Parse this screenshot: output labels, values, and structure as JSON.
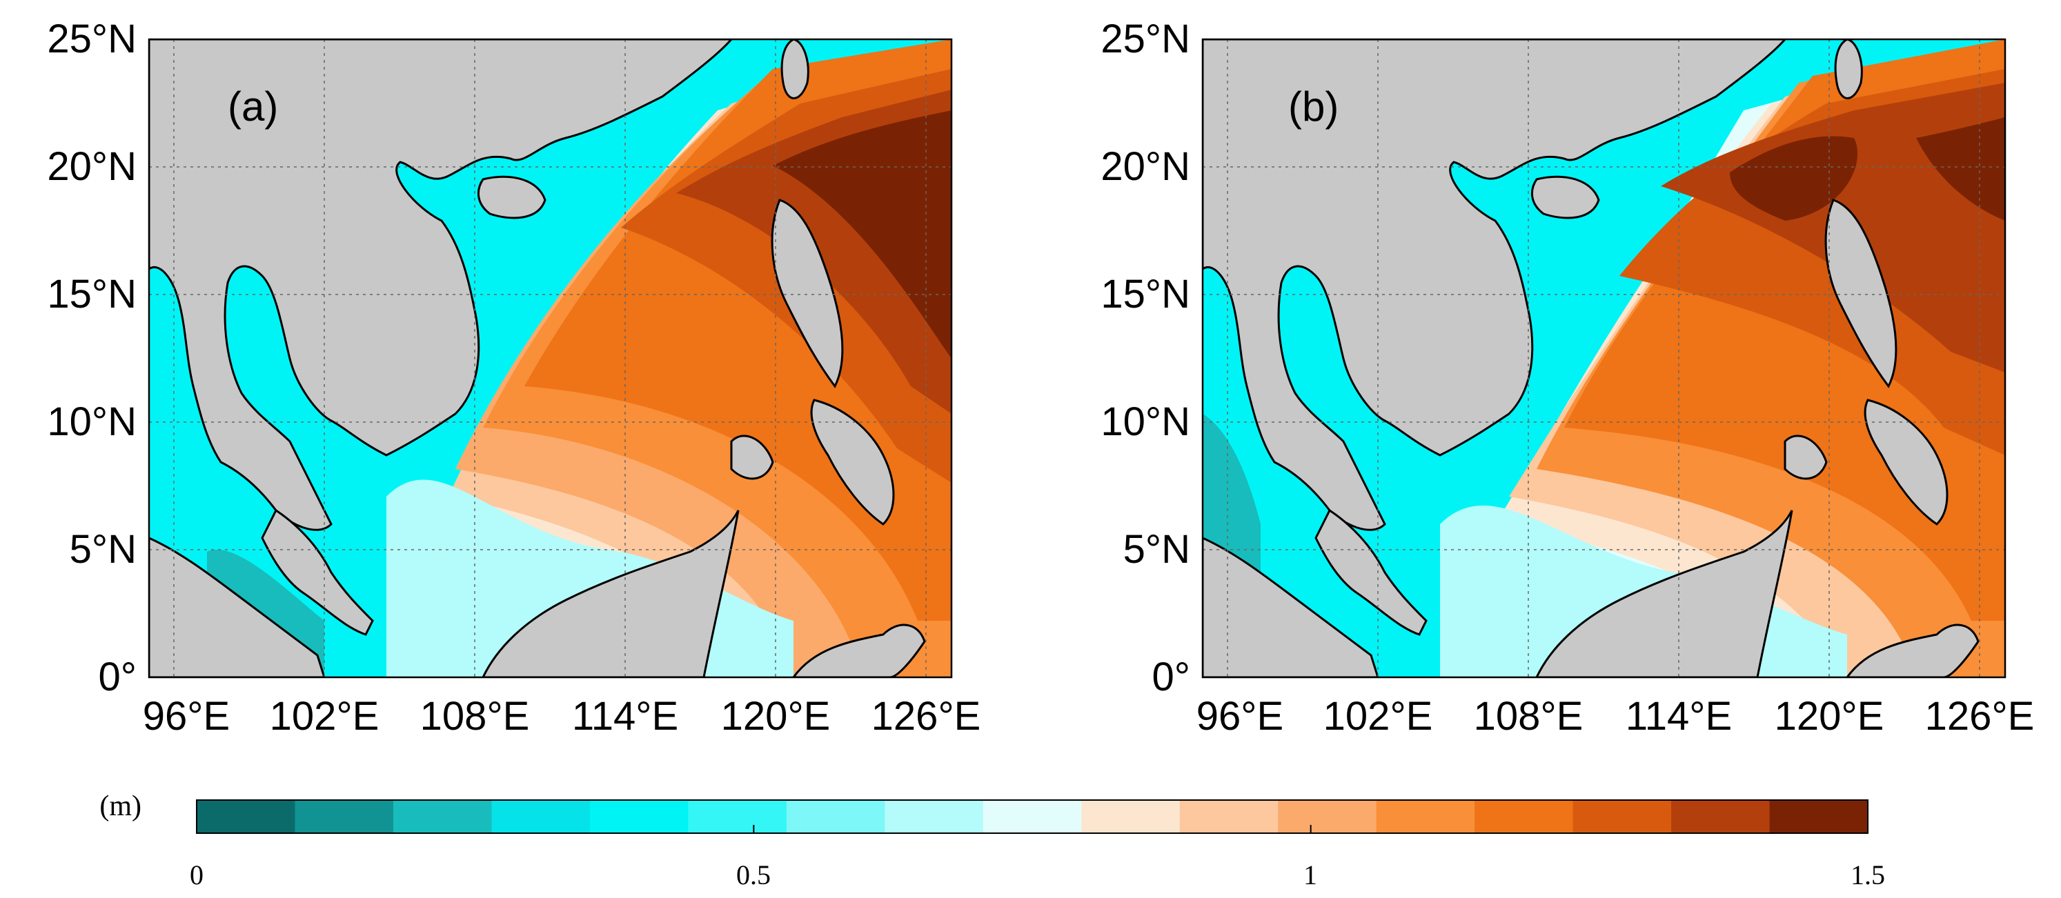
{
  "panels": [
    {
      "label": "(a)",
      "lon_ticks": [
        "96°E",
        "102°E",
        "108°E",
        "114°E",
        "120°E",
        "126°E"
      ],
      "lat_ticks": [
        "0°",
        "5°N",
        "10°N",
        "15°N",
        "20°N",
        "25°N"
      ]
    },
    {
      "label": "(b)",
      "lon_ticks": [
        "96°E",
        "102°E",
        "108°E",
        "114°E",
        "120°E",
        "126°E"
      ],
      "lat_ticks": [
        "0°",
        "5°N",
        "10°N",
        "15°N",
        "20°N",
        "25°N"
      ]
    }
  ],
  "map_extent": {
    "lon_range": [
      95,
      127
    ],
    "lat_range": [
      0,
      25
    ]
  },
  "colorbar": {
    "unit": "(m)",
    "range": [
      0,
      1.5
    ],
    "ticks": [
      "0",
      "0.5",
      "1",
      "1.5"
    ],
    "colors": [
      "#0b6b6b",
      "#119393",
      "#18bcbc",
      "#05e2e8",
      "#00f4f6",
      "#34f6f6",
      "#7df7f7",
      "#b4fbfb",
      "#e3fdfd",
      "#fde6d0",
      "#fdc89e",
      "#fbaa6c",
      "#f98f38",
      "#ef7317",
      "#d85a0e",
      "#b3400c",
      "#7a2304"
    ]
  },
  "colors": {
    "land": "#c8c8c8",
    "coast": "#000000"
  }
}
